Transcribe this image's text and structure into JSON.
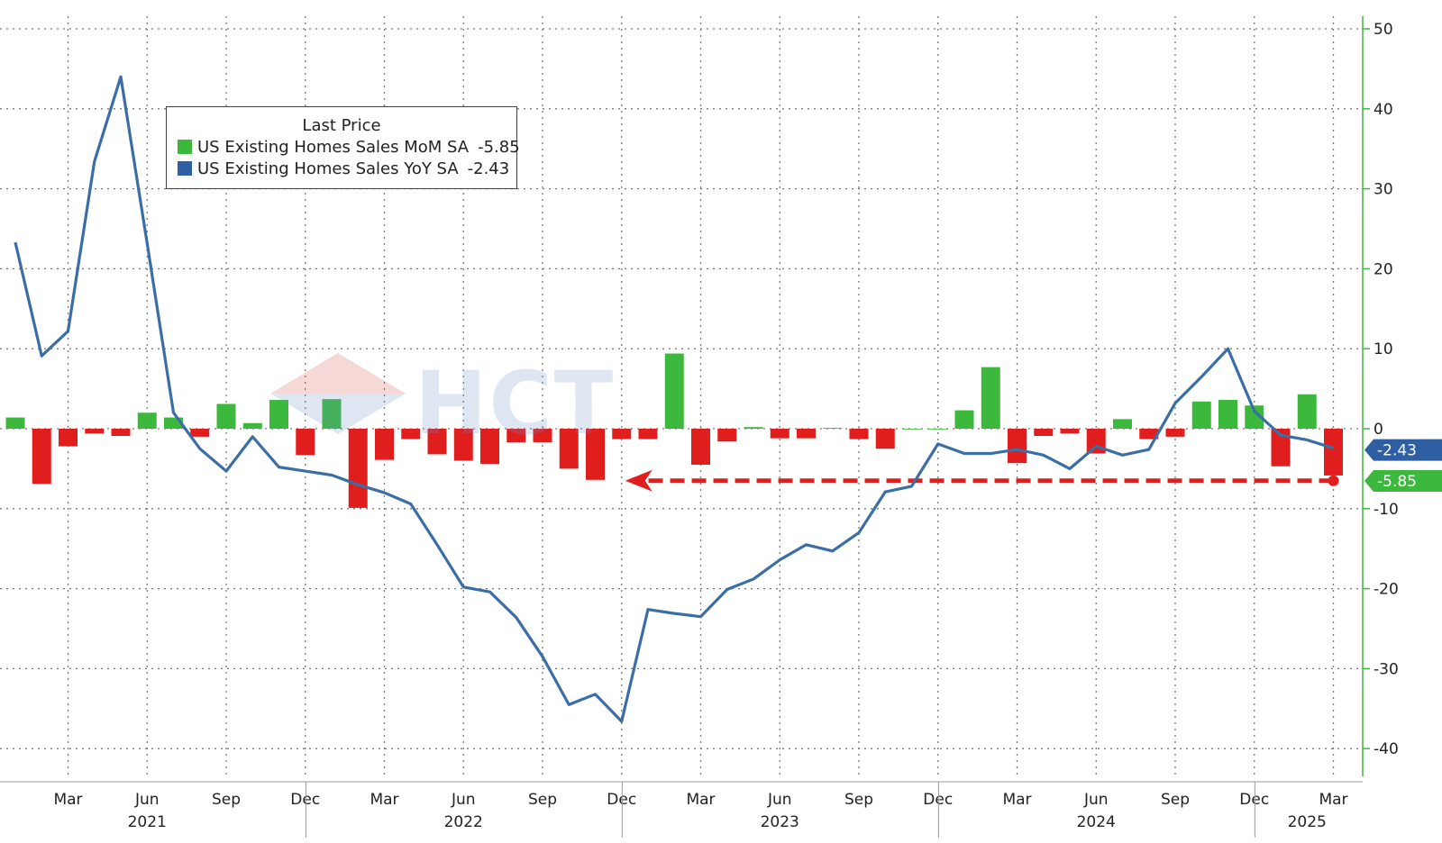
{
  "legend": {
    "title": "Last Price",
    "items": [
      {
        "label": "US Existing Homes Sales MoM SA",
        "value": "-5.85",
        "color": "#3cb93c"
      },
      {
        "label": "US Existing Homes Sales YoY SA",
        "value": "-2.43",
        "color": "#2e5fa3"
      }
    ]
  },
  "watermark": {
    "text": "HCT"
  },
  "colors": {
    "positive_bar": "#3cb93c",
    "negative_bar": "#e01e1e",
    "line": "#3a6ea5",
    "axis": "#3cb93c",
    "grid": "#777777",
    "arrow": "#e01e1e"
  },
  "chart_data": {
    "type": "bar",
    "title": "",
    "xlabel": "",
    "ylabel": "",
    "ylim": [
      -45,
      50
    ],
    "yticks": [
      50,
      40,
      30,
      20,
      10,
      0,
      -10,
      -20,
      -30,
      -40
    ],
    "grid": true,
    "legend_position": "top-left",
    "x": [
      "2021-01",
      "2021-02",
      "2021-03",
      "2021-04",
      "2021-05",
      "2021-06",
      "2021-07",
      "2021-08",
      "2021-09",
      "2021-10",
      "2021-11",
      "2021-12",
      "2022-01",
      "2022-02",
      "2022-03",
      "2022-04",
      "2022-05",
      "2022-06",
      "2022-07",
      "2022-08",
      "2022-09",
      "2022-10",
      "2022-11",
      "2022-12",
      "2023-01",
      "2023-02",
      "2023-03",
      "2023-04",
      "2023-05",
      "2023-06",
      "2023-07",
      "2023-08",
      "2023-09",
      "2023-10",
      "2023-11",
      "2023-12",
      "2024-01",
      "2024-02",
      "2024-03",
      "2024-04",
      "2024-05",
      "2024-06",
      "2024-07",
      "2024-08",
      "2024-09",
      "2024-10",
      "2024-11",
      "2024-12",
      "2025-01",
      "2025-02",
      "2025-03"
    ],
    "month_ticks": [
      "Mar",
      "Jun",
      "Sep",
      "Dec",
      "Mar",
      "Jun",
      "Sep",
      "Dec",
      "Mar",
      "Jun",
      "Sep",
      "Dec",
      "Mar",
      "Jun",
      "Sep",
      "Dec",
      "Mar"
    ],
    "month_tick_dates": [
      "2021-03",
      "2021-06",
      "2021-09",
      "2021-12",
      "2022-03",
      "2022-06",
      "2022-09",
      "2022-12",
      "2023-03",
      "2023-06",
      "2023-09",
      "2023-12",
      "2024-03",
      "2024-06",
      "2024-09",
      "2024-12",
      "2025-03"
    ],
    "year_labels": [
      "2021",
      "2022",
      "2023",
      "2024",
      "2025"
    ],
    "year_label_dates": [
      "2021-06",
      "2022-06",
      "2023-06",
      "2024-06",
      "2025-02"
    ],
    "series": [
      {
        "name": "US Existing Homes Sales MoM SA",
        "type": "bar",
        "values": [
          1.4,
          -6.9,
          -2.2,
          -0.6,
          -0.9,
          2.0,
          1.4,
          -1.0,
          3.1,
          0.7,
          3.6,
          -3.3,
          3.7,
          -9.9,
          -3.9,
          -1.3,
          -3.2,
          -4.0,
          -4.4,
          -1.7,
          -1.7,
          -5.0,
          -6.4,
          -1.3,
          -1.3,
          9.4,
          -4.5,
          -1.6,
          0.2,
          -1.2,
          -1.2,
          0.1,
          -1.3,
          -2.5,
          0.0,
          0.0,
          2.3,
          7.7,
          -4.3,
          -0.9,
          -0.6,
          -3.1,
          1.2,
          -1.3,
          -1.0,
          3.4,
          3.6,
          2.9,
          -4.7,
          4.3,
          -5.85
        ]
      },
      {
        "name": "US Existing Homes Sales YoY SA",
        "type": "line",
        "values": [
          23.3,
          9.1,
          12.2,
          33.4,
          44.0,
          23.2,
          2.0,
          -2.5,
          -5.3,
          -1.0,
          -4.8,
          -5.3,
          -5.8,
          -7.0,
          -8.0,
          -9.4,
          -14.5,
          -19.8,
          -20.4,
          -23.6,
          -28.5,
          -34.5,
          -33.2,
          -36.6,
          -22.6,
          -23.1,
          -23.5,
          -20.1,
          -18.8,
          -16.4,
          -14.5,
          -15.3,
          -13.0,
          -7.9,
          -7.2,
          -1.9,
          -3.1,
          -3.1,
          -2.6,
          -3.3,
          -5.0,
          -2.2,
          -3.3,
          -2.6,
          3.2,
          6.5,
          10.0,
          2.2,
          -0.8,
          -1.4,
          -2.43
        ]
      }
    ],
    "annotations": [
      {
        "type": "label",
        "value": "-2.43",
        "series": "US Existing Homes Sales YoY SA"
      },
      {
        "type": "label",
        "value": "-5.85",
        "series": "US Existing Homes Sales MoM SA"
      },
      {
        "type": "dashed-arrow",
        "level": -6.5,
        "from": "2025-03",
        "to": "2022-12"
      }
    ]
  }
}
